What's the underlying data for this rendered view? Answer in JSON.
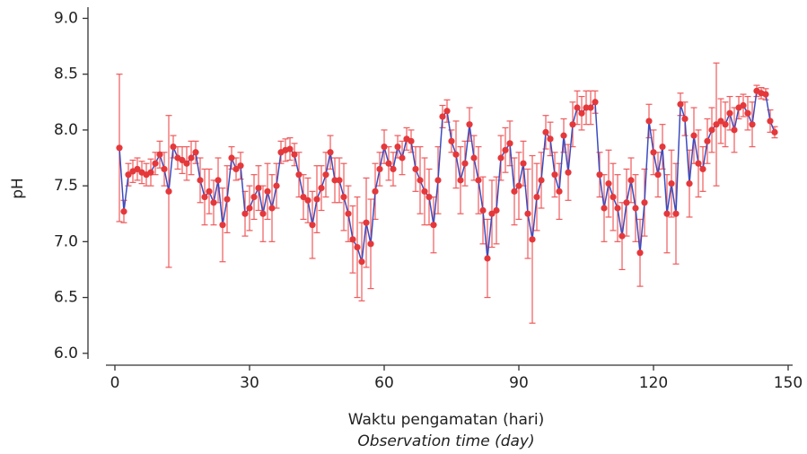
{
  "chart_data": {
    "type": "line",
    "ylabel": "pH",
    "xlabel": "Waktu pengamatan (hari)",
    "xlabel2": "Observation time (day)",
    "xlim": [
      -7,
      152
    ],
    "ylim": [
      5.95,
      9.1
    ],
    "xticks": [
      0,
      30,
      60,
      90,
      120,
      150
    ],
    "yticks": [
      {
        "value": 6,
        "label": "6.0"
      },
      6.5,
      {
        "value": 7,
        "label": "7.0"
      },
      7.5,
      {
        "value": 8,
        "label": "8.0"
      },
      8.5,
      {
        "value": 9,
        "label": "9.0"
      }
    ],
    "x": [
      1,
      2,
      3,
      4,
      5,
      6,
      7,
      8,
      9,
      10,
      11,
      12,
      13,
      14,
      15,
      16,
      17,
      18,
      19,
      20,
      21,
      22,
      23,
      24,
      25,
      26,
      27,
      28,
      29,
      30,
      31,
      32,
      33,
      34,
      35,
      36,
      37,
      38,
      39,
      40,
      41,
      42,
      43,
      44,
      45,
      46,
      47,
      48,
      49,
      50,
      51,
      52,
      53,
      54,
      55,
      56,
      57,
      58,
      59,
      60,
      61,
      62,
      63,
      64,
      65,
      66,
      67,
      68,
      69,
      70,
      71,
      72,
      73,
      74,
      75,
      76,
      77,
      78,
      79,
      80,
      81,
      82,
      83,
      84,
      85,
      86,
      87,
      88,
      89,
      90,
      91,
      92,
      93,
      94,
      95,
      96,
      97,
      98,
      99,
      100,
      101,
      102,
      103,
      104,
      105,
      106,
      107,
      108,
      109,
      110,
      111,
      112,
      113,
      114,
      115,
      116,
      117,
      118,
      119,
      120,
      121,
      122,
      123,
      124,
      125,
      126,
      127,
      128,
      129,
      130,
      131,
      132,
      133,
      134,
      135,
      136,
      137,
      138,
      139,
      140,
      141,
      142,
      143,
      144,
      145,
      146,
      147
    ],
    "series": [
      {
        "line_color": "#3a4cc0",
        "color": "#e5383b",
        "error_color": "#ef5a5c",
        "values": [
          7.84,
          7.27,
          7.6,
          7.63,
          7.65,
          7.62,
          7.6,
          7.62,
          7.7,
          7.78,
          7.65,
          7.45,
          7.85,
          7.75,
          7.73,
          7.7,
          7.75,
          7.8,
          7.55,
          7.4,
          7.45,
          7.35,
          7.55,
          7.15,
          7.38,
          7.75,
          7.65,
          7.68,
          7.25,
          7.3,
          7.4,
          7.48,
          7.25,
          7.45,
          7.3,
          7.5,
          7.8,
          7.82,
          7.83,
          7.78,
          7.6,
          7.4,
          7.37,
          7.15,
          7.38,
          7.48,
          7.6,
          7.8,
          7.55,
          7.55,
          7.4,
          7.25,
          7.02,
          6.95,
          6.82,
          7.17,
          6.98,
          7.45,
          7.65,
          7.85,
          7.7,
          7.65,
          7.85,
          7.75,
          7.92,
          7.9,
          7.65,
          7.55,
          7.45,
          7.4,
          7.15,
          7.55,
          8.12,
          8.17,
          7.9,
          7.78,
          7.55,
          7.7,
          8.05,
          7.75,
          7.55,
          7.28,
          6.85,
          7.25,
          7.28,
          7.75,
          7.82,
          7.88,
          7.45,
          7.5,
          7.7,
          7.25,
          7.02,
          7.4,
          7.55,
          7.98,
          7.92,
          7.6,
          7.45,
          7.95,
          7.62,
          8.05,
          8.2,
          8.15,
          8.2,
          8.2,
          8.25,
          7.6,
          7.3,
          7.52,
          7.4,
          7.3,
          7.05,
          7.35,
          7.55,
          7.3,
          6.9,
          7.35,
          8.08,
          7.8,
          7.6,
          7.85,
          7.25,
          7.52,
          7.25,
          8.23,
          8.1,
          7.52,
          7.95,
          7.7,
          7.65,
          7.9,
          8.0,
          8.05,
          8.08,
          8.05,
          8.15,
          8.0,
          8.2,
          8.22,
          8.15,
          8.05,
          8.35,
          8.33,
          8.32,
          8.08,
          7.98
        ],
        "errors": [
          0.66,
          0.1,
          0.1,
          0.1,
          0.1,
          0.1,
          0.1,
          0.12,
          0.1,
          0.12,
          0.15,
          0.68,
          0.1,
          0.1,
          0.12,
          0.15,
          0.15,
          0.1,
          0.2,
          0.25,
          0.2,
          0.2,
          0.2,
          0.33,
          0.3,
          0.1,
          0.1,
          0.12,
          0.2,
          0.2,
          0.2,
          0.2,
          0.25,
          0.25,
          0.3,
          0.2,
          0.1,
          0.1,
          0.1,
          0.1,
          0.2,
          0.2,
          0.2,
          0.3,
          0.3,
          0.2,
          0.2,
          0.15,
          0.2,
          0.2,
          0.3,
          0.25,
          0.3,
          0.45,
          0.35,
          0.4,
          0.4,
          0.25,
          0.15,
          0.15,
          0.15,
          0.15,
          0.1,
          0.15,
          0.1,
          0.1,
          0.2,
          0.3,
          0.3,
          0.25,
          0.25,
          0.3,
          0.1,
          0.1,
          0.1,
          0.3,
          0.3,
          0.2,
          0.15,
          0.2,
          0.3,
          0.3,
          0.35,
          0.3,
          0.3,
          0.2,
          0.2,
          0.2,
          0.3,
          0.3,
          0.2,
          0.4,
          0.75,
          0.3,
          0.25,
          0.15,
          0.15,
          0.2,
          0.25,
          0.15,
          0.25,
          0.2,
          0.15,
          0.15,
          0.15,
          0.15,
          0.1,
          0.2,
          0.3,
          0.3,
          0.3,
          0.3,
          0.3,
          0.3,
          0.2,
          0.3,
          0.3,
          0.3,
          0.15,
          0.2,
          0.2,
          0.2,
          0.35,
          0.3,
          0.45,
          0.1,
          0.15,
          0.3,
          0.25,
          0.3,
          0.2,
          0.2,
          0.2,
          0.55,
          0.2,
          0.2,
          0.15,
          0.2,
          0.1,
          0.1,
          0.15,
          0.2,
          0.05,
          0.05,
          0.05,
          0.1,
          0.05
        ]
      }
    ]
  }
}
